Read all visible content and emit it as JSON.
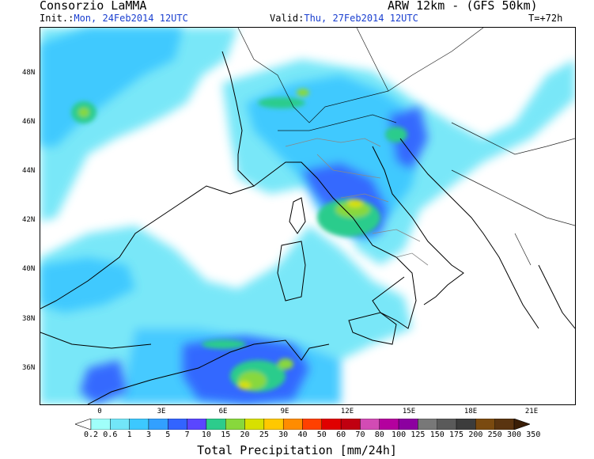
{
  "header": {
    "org": "Consorzio LaMMA",
    "model": "ARW 12km - (GFS 50km)",
    "init_label": "Init.:",
    "init_value": "Mon, 24Feb2014 12UTC",
    "valid_label": "Valid:",
    "valid_value": "Thu, 27Feb2014 12UTC",
    "forecast_step": "T=+72h"
  },
  "map": {
    "lat_labels": [
      "48N",
      "46N",
      "44N",
      "42N",
      "40N",
      "38N",
      "36N"
    ],
    "lon_labels": [
      "0",
      "3E",
      "6E",
      "9E",
      "12E",
      "15E",
      "18E",
      "21E"
    ]
  },
  "legend": {
    "levels": [
      "0.2",
      "0.6",
      "1",
      "3",
      "5",
      "7",
      "10",
      "15",
      "20",
      "25",
      "30",
      "40",
      "50",
      "60",
      "70",
      "80",
      "100",
      "125",
      "150",
      "175",
      "200",
      "250",
      "300",
      "350"
    ],
    "colors": [
      "#ffffff",
      "#a0fffa",
      "#72e6f8",
      "#3cc8ff",
      "#32a0ff",
      "#3264ff",
      "#5a46ff",
      "#2ccc8c",
      "#88d83c",
      "#d8e000",
      "#ffc800",
      "#ff8c00",
      "#ff4000",
      "#e00000",
      "#c00010",
      "#d24bb4",
      "#b4009e",
      "#8c00a0",
      "#787878",
      "#5a5a5a",
      "#3c3c3c",
      "#7a4a10",
      "#5a3410",
      "#3a1e06"
    ],
    "units": "Total Precipitation [mm/24h]"
  }
}
